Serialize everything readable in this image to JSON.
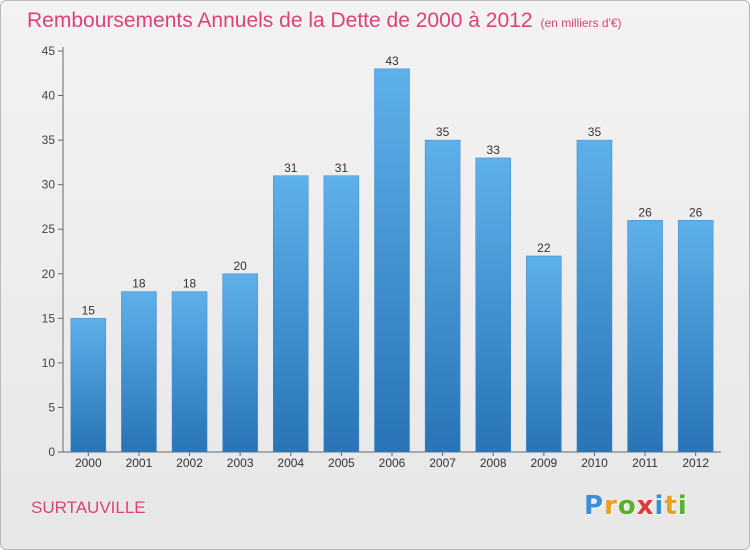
{
  "header": {
    "title": "Remboursements Annuels de la Dette de 2000 à 2012",
    "unit": "(en milliers d'€)"
  },
  "footer": {
    "city": "SURTAUVILLE",
    "brand": "Proxiti"
  },
  "colors": {
    "title": "#e0407a",
    "bar_top": "#5eb0ea",
    "bar_bottom": "#2874b6",
    "logo": [
      "#3a8fd6",
      "#e8a020",
      "#58b02c",
      "#e03a3a",
      "#3a8fd6",
      "#e8a020",
      "#58b02c"
    ]
  },
  "chart_data": {
    "type": "bar",
    "categories": [
      "2000",
      "2001",
      "2002",
      "2003",
      "2004",
      "2005",
      "2006",
      "2007",
      "2008",
      "2009",
      "2010",
      "2011",
      "2012"
    ],
    "values": [
      15,
      18,
      18,
      20,
      31,
      31,
      43,
      35,
      33,
      22,
      35,
      26,
      26
    ],
    "title": "Remboursements Annuels de la Dette de 2000 à 2012",
    "xlabel": "",
    "ylabel": "",
    "ylim": [
      0,
      45
    ],
    "yticks": [
      0,
      5,
      10,
      15,
      20,
      25,
      30,
      35,
      40,
      45
    ],
    "grid": false,
    "data_labels": true
  }
}
